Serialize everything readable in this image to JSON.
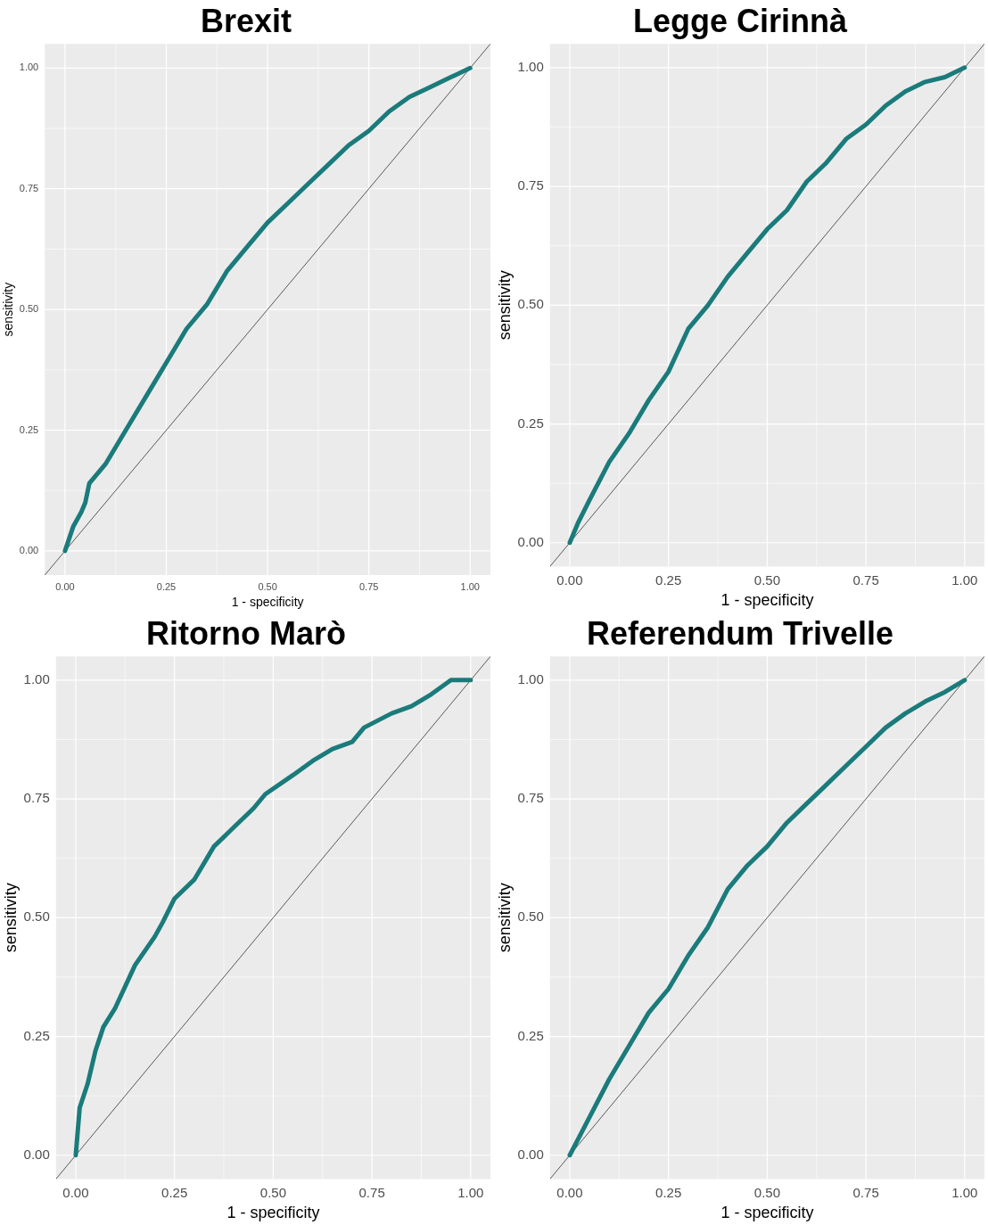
{
  "chart_data": [
    {
      "type": "line",
      "title": "Brexit",
      "xlabel": "1 - specificity",
      "ylabel": "sensitivity",
      "xlim": [
        -0.05,
        1.05
      ],
      "ylim": [
        -0.05,
        1.05
      ],
      "xticks": [
        {
          "value": 0,
          "label": "0.00"
        },
        {
          "value": 0.25,
          "label": "0.25"
        },
        {
          "value": 0.5,
          "label": "0.50"
        },
        {
          "value": 0.75,
          "label": "0.75"
        },
        {
          "value": 1,
          "label": "1.00"
        }
      ],
      "yticks": [
        {
          "value": 0,
          "label": "0.00"
        },
        {
          "value": 0.25,
          "label": "0.25"
        },
        {
          "value": 0.5,
          "label": "0.50"
        },
        {
          "value": 0.75,
          "label": "0.75"
        },
        {
          "value": 1,
          "label": "1.00"
        }
      ],
      "grid": true,
      "legend": false,
      "marker": "none",
      "series": [
        {
          "type": "line",
          "color": "#1b7b7b",
          "x": [
            0,
            0.02,
            0.04,
            0.05,
            0.06,
            0.1,
            0.15,
            0.2,
            0.25,
            0.3,
            0.35,
            0.4,
            0.45,
            0.5,
            0.55,
            0.6,
            0.65,
            0.7,
            0.75,
            0.8,
            0.85,
            0.9,
            0.95,
            1
          ],
          "values": [
            0,
            0.05,
            0.08,
            0.1,
            0.14,
            0.18,
            0.25,
            0.32,
            0.39,
            0.46,
            0.51,
            0.58,
            0.63,
            0.68,
            0.72,
            0.76,
            0.8,
            0.84,
            0.87,
            0.91,
            0.94,
            0.96,
            0.98,
            1
          ]
        },
        {
          "type": "line",
          "color": "#595959",
          "x": [
            -0.05,
            1.05
          ],
          "values": [
            -0.05,
            1.05
          ]
        }
      ]
    },
    {
      "type": "line",
      "title": "Legge Cirinnà",
      "xlabel": "1 - specificity",
      "ylabel": "sensitivity",
      "xlim": [
        -0.05,
        1.05
      ],
      "ylim": [
        -0.05,
        1.05
      ],
      "xticks": [
        {
          "value": 0,
          "label": "0.00"
        },
        {
          "value": 0.25,
          "label": "0.25"
        },
        {
          "value": 0.5,
          "label": "0.50"
        },
        {
          "value": 0.75,
          "label": "0.75"
        },
        {
          "value": 1,
          "label": "1.00"
        }
      ],
      "yticks": [
        {
          "value": 0,
          "label": "0.00"
        },
        {
          "value": 0.25,
          "label": "0.25"
        },
        {
          "value": 0.5,
          "label": "0.50"
        },
        {
          "value": 0.75,
          "label": "0.75"
        },
        {
          "value": 1,
          "label": "1.00"
        }
      ],
      "grid": true,
      "legend": false,
      "marker": "none",
      "series": [
        {
          "type": "line",
          "color": "#1b7b7b",
          "x": [
            0,
            0.02,
            0.05,
            0.1,
            0.15,
            0.2,
            0.25,
            0.3,
            0.35,
            0.4,
            0.45,
            0.5,
            0.55,
            0.6,
            0.65,
            0.7,
            0.75,
            0.8,
            0.85,
            0.9,
            0.95,
            1
          ],
          "values": [
            0,
            0.04,
            0.09,
            0.17,
            0.23,
            0.3,
            0.36,
            0.45,
            0.5,
            0.56,
            0.61,
            0.66,
            0.7,
            0.76,
            0.8,
            0.85,
            0.88,
            0.92,
            0.95,
            0.97,
            0.98,
            1
          ]
        },
        {
          "type": "line",
          "color": "#595959",
          "x": [
            -0.05,
            1.05
          ],
          "values": [
            -0.05,
            1.05
          ]
        }
      ]
    },
    {
      "type": "line",
      "title": "Ritorno Marò",
      "xlabel": "1 - specificity",
      "ylabel": "sensitivity",
      "xlim": [
        -0.05,
        1.05
      ],
      "ylim": [
        -0.05,
        1.05
      ],
      "xticks": [
        {
          "value": 0,
          "label": "0.00"
        },
        {
          "value": 0.25,
          "label": "0.25"
        },
        {
          "value": 0.5,
          "label": "0.50"
        },
        {
          "value": 0.75,
          "label": "0.75"
        },
        {
          "value": 1,
          "label": "1.00"
        }
      ],
      "yticks": [
        {
          "value": 0,
          "label": "0.00"
        },
        {
          "value": 0.25,
          "label": "0.25"
        },
        {
          "value": 0.5,
          "label": "0.50"
        },
        {
          "value": 0.75,
          "label": "0.75"
        },
        {
          "value": 1,
          "label": "1.00"
        }
      ],
      "grid": true,
      "legend": false,
      "marker": "none",
      "series": [
        {
          "type": "line",
          "color": "#1b7b7b",
          "x": [
            0,
            0.01,
            0.03,
            0.05,
            0.07,
            0.1,
            0.15,
            0.2,
            0.22,
            0.25,
            0.3,
            0.35,
            0.4,
            0.45,
            0.48,
            0.55,
            0.6,
            0.65,
            0.7,
            0.73,
            0.8,
            0.85,
            0.9,
            0.95,
            1
          ],
          "values": [
            0,
            0.1,
            0.15,
            0.22,
            0.27,
            0.31,
            0.4,
            0.46,
            0.49,
            0.54,
            0.58,
            0.65,
            0.69,
            0.73,
            0.76,
            0.8,
            0.83,
            0.855,
            0.87,
            0.9,
            0.93,
            0.945,
            0.97,
            1,
            1
          ]
        },
        {
          "type": "line",
          "color": "#595959",
          "x": [
            -0.05,
            1.05
          ],
          "values": [
            -0.05,
            1.05
          ]
        }
      ]
    },
    {
      "type": "line",
      "title": "Referendum Trivelle",
      "xlabel": "1 - specificity",
      "ylabel": "sensitivity",
      "xlim": [
        -0.05,
        1.05
      ],
      "ylim": [
        -0.05,
        1.05
      ],
      "xticks": [
        {
          "value": 0,
          "label": "0.00"
        },
        {
          "value": 0.25,
          "label": "0.25"
        },
        {
          "value": 0.5,
          "label": "0.50"
        },
        {
          "value": 0.75,
          "label": "0.75"
        },
        {
          "value": 1,
          "label": "1.00"
        }
      ],
      "yticks": [
        {
          "value": 0,
          "label": "0.00"
        },
        {
          "value": 0.25,
          "label": "0.25"
        },
        {
          "value": 0.5,
          "label": "0.50"
        },
        {
          "value": 0.75,
          "label": "0.75"
        },
        {
          "value": 1,
          "label": "1.00"
        }
      ],
      "grid": true,
      "legend": false,
      "marker": "none",
      "series": [
        {
          "type": "line",
          "color": "#1b7b7b",
          "x": [
            0,
            0.05,
            0.1,
            0.15,
            0.2,
            0.25,
            0.3,
            0.35,
            0.4,
            0.45,
            0.5,
            0.55,
            0.6,
            0.65,
            0.7,
            0.75,
            0.8,
            0.85,
            0.9,
            0.95,
            1
          ],
          "values": [
            0,
            0.08,
            0.16,
            0.23,
            0.3,
            0.35,
            0.42,
            0.48,
            0.56,
            0.61,
            0.65,
            0.7,
            0.74,
            0.78,
            0.82,
            0.86,
            0.9,
            0.93,
            0.955,
            0.975,
            1
          ]
        },
        {
          "type": "line",
          "color": "#595959",
          "x": [
            -0.05,
            1.05
          ],
          "values": [
            -0.05,
            1.05
          ]
        }
      ]
    }
  ]
}
